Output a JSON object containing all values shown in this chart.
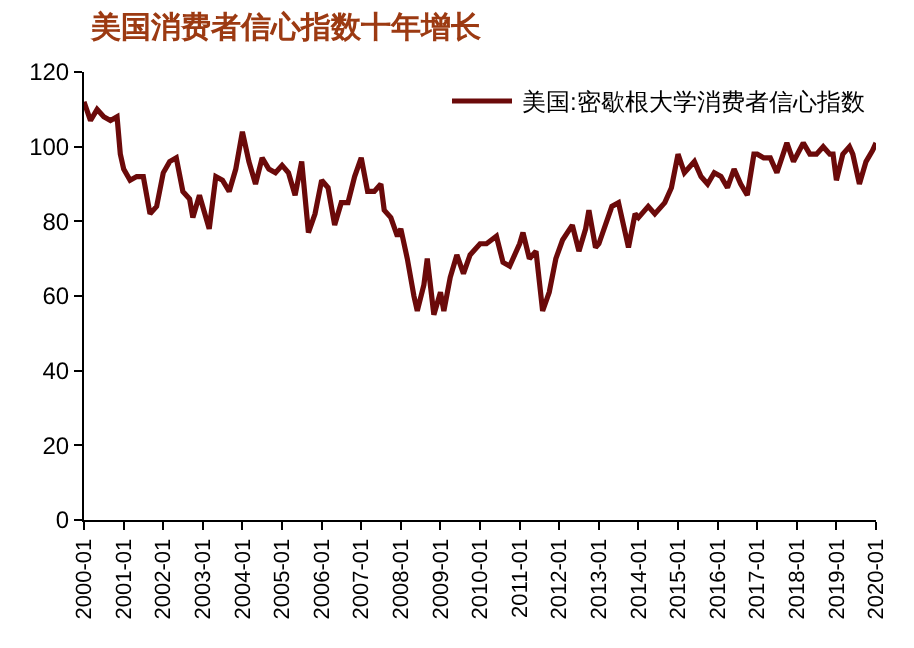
{
  "chart_data": {
    "type": "line",
    "title": "美国消费者信心指数十年增长",
    "x": [
      "2000-01",
      "2000-03",
      "2000-05",
      "2000-07",
      "2000-09",
      "2000-11",
      "2000-12",
      "2001-01",
      "2001-03",
      "2001-05",
      "2001-07",
      "2001-09",
      "2001-11",
      "2002-01",
      "2002-03",
      "2002-05",
      "2002-07",
      "2002-09",
      "2002-10",
      "2002-12",
      "2003-03",
      "2003-05",
      "2003-07",
      "2003-09",
      "2003-11",
      "2004-01",
      "2004-03",
      "2004-05",
      "2004-07",
      "2004-09",
      "2004-11",
      "2005-01",
      "2005-03",
      "2005-05",
      "2005-07",
      "2005-09",
      "2005-11",
      "2006-01",
      "2006-03",
      "2006-05",
      "2006-07",
      "2006-09",
      "2006-11",
      "2007-01",
      "2007-03",
      "2007-05",
      "2007-07",
      "2007-08",
      "2007-10",
      "2007-12",
      "2008-01",
      "2008-03",
      "2008-05",
      "2008-06",
      "2008-08",
      "2008-09",
      "2008-11",
      "2009-01",
      "2009-02",
      "2009-04",
      "2009-06",
      "2009-08",
      "2009-10",
      "2010-01",
      "2010-03",
      "2010-06",
      "2010-08",
      "2010-10",
      "2011-01",
      "2011-02",
      "2011-04",
      "2011-06",
      "2011-08",
      "2011-10",
      "2011-12",
      "2012-02",
      "2012-05",
      "2012-07",
      "2012-09",
      "2012-10",
      "2012-12",
      "2013-01",
      "2013-05",
      "2013-07",
      "2013-10",
      "2013-12",
      "2014-01",
      "2014-04",
      "2014-06",
      "2014-09",
      "2014-11",
      "2015-01",
      "2015-03",
      "2015-06",
      "2015-08",
      "2015-10",
      "2015-12",
      "2016-02",
      "2016-04",
      "2016-06",
      "2016-08",
      "2016-10",
      "2016-12",
      "2017-01",
      "2017-03",
      "2017-05",
      "2017-07",
      "2017-10",
      "2017-12",
      "2018-03",
      "2018-05",
      "2018-07",
      "2018-09",
      "2018-11",
      "2018-12",
      "2019-01",
      "2019-03",
      "2019-05",
      "2019-06",
      "2019-08",
      "2019-10",
      "2019-12",
      "2020-01"
    ],
    "series": [
      {
        "name": "美国:密歇根大学消费者信心指数",
        "color": "#6b0a0a",
        "values": [
          112,
          107,
          110,
          108,
          107,
          108,
          98,
          94,
          91,
          92,
          92,
          82,
          84,
          93,
          96,
          97,
          88,
          86,
          81,
          87,
          78,
          92,
          91,
          88,
          94,
          104,
          96,
          90,
          97,
          94,
          93,
          95,
          93,
          87,
          96,
          77,
          82,
          91,
          89,
          79,
          85,
          85,
          92,
          97,
          88,
          88,
          90,
          83,
          81,
          76,
          78,
          70,
          60,
          56,
          63,
          70,
          55,
          61,
          56,
          65,
          71,
          66,
          71,
          74,
          74,
          76,
          69,
          68,
          74,
          77,
          70,
          72,
          56,
          61,
          70,
          75,
          79,
          72,
          78,
          83,
          73,
          74,
          84,
          85,
          73,
          82,
          81,
          84,
          82,
          85,
          89,
          98,
          93,
          96,
          92,
          90,
          93,
          92,
          89,
          94,
          90,
          87,
          98,
          98,
          97,
          97,
          93,
          101,
          96,
          101,
          98,
          98,
          100,
          98,
          98,
          91,
          98,
          100,
          98,
          90,
          96,
          99,
          101
        ]
      }
    ],
    "xlim": [
      "2000-01",
      "2020-01"
    ],
    "xticks": [
      "2000-01",
      "2001-01",
      "2002-01",
      "2003-01",
      "2004-01",
      "2005-01",
      "2006-01",
      "2007-01",
      "2008-01",
      "2009-01",
      "2010-01",
      "2011-01",
      "2012-01",
      "2013-01",
      "2014-01",
      "2015-01",
      "2016-01",
      "2017-01",
      "2018-01",
      "2019-01",
      "2020-01"
    ],
    "ylim": [
      0,
      120
    ],
    "yticks": [
      0,
      20,
      40,
      60,
      80,
      100,
      120
    ],
    "legend": "top right",
    "line_style": "solid",
    "marker": "none"
  }
}
